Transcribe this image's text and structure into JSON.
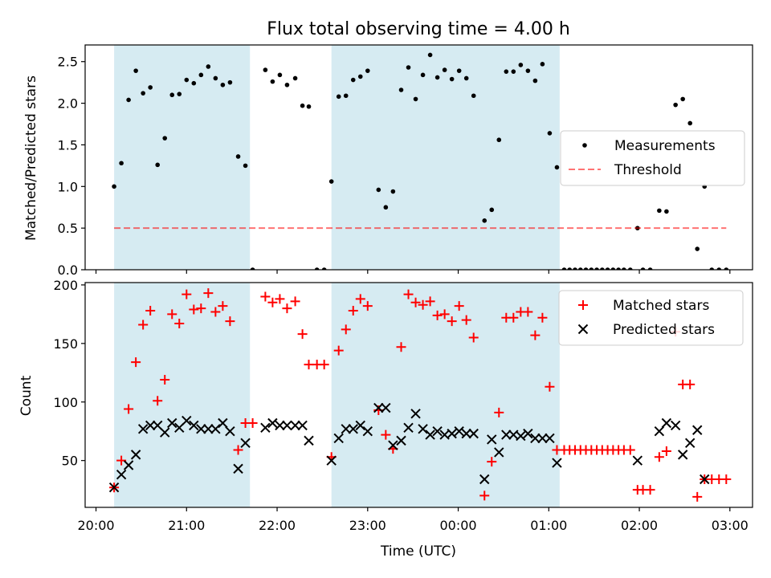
{
  "figure": {
    "title": "Flux total observing time = 4.00 h",
    "xlabel": "Time (UTC)",
    "x_ticks": [
      "20:00",
      "21:00",
      "22:00",
      "23:00",
      "00:00",
      "01:00",
      "02:00",
      "03:00"
    ]
  },
  "chart_data": [
    {
      "type": "scatter",
      "ylabel": "Matched/Predicted stars",
      "ylim": [
        0,
        2.7
      ],
      "y_ticks": [
        "0.0",
        "0.5",
        "1.0",
        "1.5",
        "2.0",
        "2.5"
      ],
      "x_unit": "hours since 20:00 UTC",
      "x_range": [
        -0.12,
        7.25
      ],
      "shaded_intervals": [
        [
          0.2,
          1.7
        ],
        [
          2.6,
          5.12
        ]
      ],
      "shade_color": "#add8e6",
      "legend_position": "center-right",
      "series": [
        {
          "name": "Measurements",
          "marker": "dot",
          "color": "#000000",
          "points": [
            [
              0.2,
              1.0
            ],
            [
              0.28,
              1.28
            ],
            [
              0.36,
              2.04
            ],
            [
              0.44,
              2.39
            ],
            [
              0.52,
              2.12
            ],
            [
              0.6,
              2.19
            ],
            [
              0.68,
              1.26
            ],
            [
              0.76,
              1.58
            ],
            [
              0.84,
              2.1
            ],
            [
              0.92,
              2.11
            ],
            [
              1.0,
              2.28
            ],
            [
              1.08,
              2.24
            ],
            [
              1.16,
              2.34
            ],
            [
              1.24,
              2.44
            ],
            [
              1.32,
              2.3
            ],
            [
              1.4,
              2.22
            ],
            [
              1.48,
              2.25
            ],
            [
              1.57,
              1.36
            ],
            [
              1.65,
              1.25
            ],
            [
              1.73,
              0.0
            ],
            [
              1.87,
              2.4
            ],
            [
              1.95,
              2.26
            ],
            [
              2.03,
              2.34
            ],
            [
              2.11,
              2.22
            ],
            [
              2.2,
              2.3
            ],
            [
              2.28,
              1.97
            ],
            [
              2.35,
              1.96
            ],
            [
              2.44,
              0.0
            ],
            [
              2.52,
              0.0
            ],
            [
              2.6,
              1.06
            ],
            [
              2.68,
              2.08
            ],
            [
              2.76,
              2.09
            ],
            [
              2.84,
              2.28
            ],
            [
              2.92,
              2.32
            ],
            [
              3.0,
              2.39
            ],
            [
              3.12,
              0.96
            ],
            [
              3.2,
              0.75
            ],
            [
              3.28,
              0.94
            ],
            [
              3.37,
              2.16
            ],
            [
              3.45,
              2.43
            ],
            [
              3.53,
              2.05
            ],
            [
              3.61,
              2.34
            ],
            [
              3.69,
              2.58
            ],
            [
              3.77,
              2.31
            ],
            [
              3.85,
              2.4
            ],
            [
              3.93,
              2.29
            ],
            [
              4.01,
              2.39
            ],
            [
              4.09,
              2.3
            ],
            [
              4.17,
              2.09
            ],
            [
              4.29,
              0.59
            ],
            [
              4.37,
              0.72
            ],
            [
              4.45,
              1.56
            ],
            [
              4.53,
              2.38
            ],
            [
              4.61,
              2.38
            ],
            [
              4.69,
              2.46
            ],
            [
              4.77,
              2.39
            ],
            [
              4.85,
              2.27
            ],
            [
              4.93,
              2.47
            ],
            [
              5.01,
              1.64
            ],
            [
              5.09,
              1.23
            ],
            [
              5.17,
              0.0
            ],
            [
              5.23,
              0.0
            ],
            [
              5.29,
              0.0
            ],
            [
              5.35,
              0.0
            ],
            [
              5.41,
              0.0
            ],
            [
              5.47,
              0.0
            ],
            [
              5.53,
              0.0
            ],
            [
              5.59,
              0.0
            ],
            [
              5.65,
              0.0
            ],
            [
              5.71,
              0.0
            ],
            [
              5.77,
              0.0
            ],
            [
              5.83,
              0.0
            ],
            [
              5.9,
              0.0
            ],
            [
              5.98,
              0.5
            ],
            [
              6.04,
              0.0
            ],
            [
              6.12,
              0.0
            ],
            [
              6.22,
              0.71
            ],
            [
              6.3,
              0.7
            ],
            [
              6.4,
              1.98
            ],
            [
              6.48,
              2.05
            ],
            [
              6.56,
              1.76
            ],
            [
              6.64,
              0.25
            ],
            [
              6.72,
              1.0
            ],
            [
              6.8,
              0.0
            ],
            [
              6.88,
              0.0
            ],
            [
              6.96,
              0.0
            ]
          ]
        },
        {
          "name": "Threshold",
          "line": "dashed",
          "color": "#ff0000",
          "opacity": 0.55,
          "points": [
            [
              0.2,
              0.5
            ],
            [
              6.96,
              0.5
            ]
          ]
        }
      ]
    },
    {
      "type": "scatter",
      "ylabel": "Count",
      "ylim": [
        10,
        202
      ],
      "y_ticks": [
        "50",
        "100",
        "150",
        "200"
      ],
      "x_unit": "hours since 20:00 UTC",
      "x_range": [
        -0.12,
        7.25
      ],
      "shaded_intervals": [
        [
          0.2,
          1.7
        ],
        [
          2.6,
          5.12
        ]
      ],
      "shade_color": "#add8e6",
      "legend_position": "top-right",
      "series": [
        {
          "name": "Matched stars",
          "marker": "plus",
          "color": "#ff0000",
          "points": [
            [
              0.2,
              27
            ],
            [
              0.28,
              50
            ],
            [
              0.36,
              94
            ],
            [
              0.44,
              134
            ],
            [
              0.52,
              166
            ],
            [
              0.6,
              178
            ],
            [
              0.68,
              101
            ],
            [
              0.76,
              119
            ],
            [
              0.84,
              175
            ],
            [
              0.92,
              167
            ],
            [
              1.0,
              192
            ],
            [
              1.08,
              179
            ],
            [
              1.16,
              180
            ],
            [
              1.24,
              193
            ],
            [
              1.32,
              177
            ],
            [
              1.4,
              182
            ],
            [
              1.48,
              169
            ],
            [
              1.57,
              59
            ],
            [
              1.65,
              82
            ],
            [
              1.73,
              82
            ],
            [
              1.87,
              190
            ],
            [
              1.95,
              185
            ],
            [
              2.03,
              188
            ],
            [
              2.11,
              180
            ],
            [
              2.2,
              186
            ],
            [
              2.28,
              158
            ],
            [
              2.35,
              132
            ],
            [
              2.44,
              132
            ],
            [
              2.52,
              132
            ],
            [
              2.6,
              53
            ],
            [
              2.68,
              144
            ],
            [
              2.76,
              162
            ],
            [
              2.84,
              178
            ],
            [
              2.92,
              188
            ],
            [
              3.0,
              182
            ],
            [
              3.12,
              93
            ],
            [
              3.2,
              72
            ],
            [
              3.28,
              60
            ],
            [
              3.37,
              147
            ],
            [
              3.45,
              192
            ],
            [
              3.53,
              185
            ],
            [
              3.61,
              183
            ],
            [
              3.69,
              186
            ],
            [
              3.77,
              174
            ],
            [
              3.85,
              175
            ],
            [
              3.93,
              169
            ],
            [
              4.01,
              182
            ],
            [
              4.09,
              170
            ],
            [
              4.17,
              155
            ],
            [
              4.29,
              20
            ],
            [
              4.37,
              49
            ],
            [
              4.45,
              91
            ],
            [
              4.53,
              172
            ],
            [
              4.61,
              172
            ],
            [
              4.69,
              177
            ],
            [
              4.77,
              177
            ],
            [
              4.85,
              157
            ],
            [
              4.93,
              172
            ],
            [
              5.01,
              113
            ],
            [
              5.09,
              59
            ],
            [
              5.17,
              59
            ],
            [
              5.23,
              59
            ],
            [
              5.29,
              59
            ],
            [
              5.35,
              59
            ],
            [
              5.41,
              59
            ],
            [
              5.47,
              59
            ],
            [
              5.53,
              59
            ],
            [
              5.59,
              59
            ],
            [
              5.65,
              59
            ],
            [
              5.71,
              59
            ],
            [
              5.77,
              59
            ],
            [
              5.83,
              59
            ],
            [
              5.9,
              59
            ],
            [
              5.98,
              25
            ],
            [
              6.04,
              25
            ],
            [
              6.12,
              25
            ],
            [
              6.22,
              53
            ],
            [
              6.3,
              58
            ],
            [
              6.4,
              160
            ],
            [
              6.48,
              115
            ],
            [
              6.56,
              115
            ],
            [
              6.64,
              19
            ],
            [
              6.72,
              34
            ],
            [
              6.8,
              34
            ],
            [
              6.88,
              34
            ],
            [
              6.96,
              34
            ]
          ]
        },
        {
          "name": "Predicted stars",
          "marker": "x",
          "color": "#000000",
          "points": [
            [
              0.2,
              27
            ],
            [
              0.28,
              38
            ],
            [
              0.36,
              46
            ],
            [
              0.44,
              55
            ],
            [
              0.52,
              77
            ],
            [
              0.6,
              80
            ],
            [
              0.68,
              80
            ],
            [
              0.76,
              74
            ],
            [
              0.84,
              82
            ],
            [
              0.92,
              78
            ],
            [
              1.0,
              84
            ],
            [
              1.08,
              80
            ],
            [
              1.16,
              77
            ],
            [
              1.24,
              77
            ],
            [
              1.32,
              77
            ],
            [
              1.4,
              82
            ],
            [
              1.48,
              75
            ],
            [
              1.57,
              43
            ],
            [
              1.65,
              65
            ],
            [
              1.87,
              78
            ],
            [
              1.95,
              82
            ],
            [
              2.03,
              80
            ],
            [
              2.11,
              80
            ],
            [
              2.2,
              80
            ],
            [
              2.28,
              80
            ],
            [
              2.35,
              67
            ],
            [
              2.6,
              50
            ],
            [
              2.68,
              69
            ],
            [
              2.76,
              77
            ],
            [
              2.84,
              77
            ],
            [
              2.92,
              80
            ],
            [
              3.0,
              75
            ],
            [
              3.12,
              95
            ],
            [
              3.2,
              95
            ],
            [
              3.28,
              63
            ],
            [
              3.37,
              67
            ],
            [
              3.45,
              78
            ],
            [
              3.53,
              90
            ],
            [
              3.61,
              77
            ],
            [
              3.69,
              72
            ],
            [
              3.77,
              75
            ],
            [
              3.85,
              72
            ],
            [
              3.93,
              73
            ],
            [
              4.01,
              75
            ],
            [
              4.09,
              73
            ],
            [
              4.17,
              73
            ],
            [
              4.29,
              34
            ],
            [
              4.37,
              68
            ],
            [
              4.45,
              57
            ],
            [
              4.53,
              72
            ],
            [
              4.61,
              72
            ],
            [
              4.69,
              71
            ],
            [
              4.77,
              73
            ],
            [
              4.85,
              69
            ],
            [
              4.93,
              69
            ],
            [
              5.01,
              69
            ],
            [
              5.09,
              48
            ],
            [
              5.98,
              50
            ],
            [
              6.22,
              75
            ],
            [
              6.3,
              82
            ],
            [
              6.4,
              80
            ],
            [
              6.48,
              55
            ],
            [
              6.56,
              65
            ],
            [
              6.64,
              76
            ],
            [
              6.72,
              34
            ]
          ]
        }
      ]
    }
  ]
}
